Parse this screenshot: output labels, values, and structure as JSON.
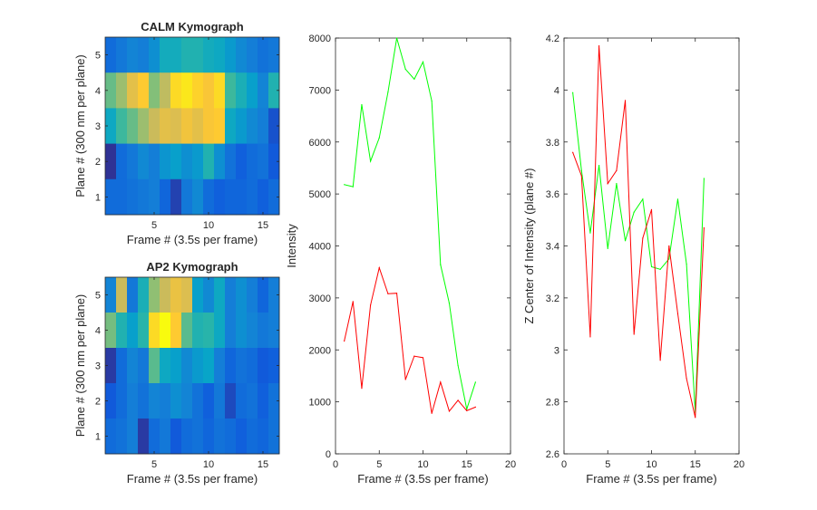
{
  "chart_data": [
    {
      "type": "heatmap",
      "title": "CALM Kymograph",
      "xlabel": "Frame # (3.5s per frame)",
      "ylabel": "Plane # (300 nm per plane)",
      "x_ticks": [
        5,
        10,
        15
      ],
      "y_ticks": [
        1,
        2,
        3,
        4,
        5
      ],
      "x_range": [
        0.5,
        16.5
      ],
      "y_range": [
        0.5,
        5.5
      ],
      "colormap": [
        "#352a87",
        "#0f5cdd",
        "#1481d6",
        "#06a4ca",
        "#2eb7a4",
        "#87bf77",
        "#d1bb59",
        "#fec832",
        "#f9fb0e"
      ],
      "color_range": [
        0,
        1
      ],
      "rows": [
        {
          "plane": 5,
          "values": [
            0.18,
            0.22,
            0.26,
            0.24,
            0.3,
            0.42,
            0.42,
            0.46,
            0.46,
            0.42,
            0.4,
            0.34,
            0.28,
            0.24,
            0.2,
            0.22
          ]
        },
        {
          "plane": 4,
          "values": [
            0.58,
            0.66,
            0.8,
            0.88,
            0.62,
            0.72,
            0.92,
            0.95,
            0.9,
            0.86,
            0.92,
            0.52,
            0.44,
            0.36,
            0.26,
            0.46
          ]
        },
        {
          "plane": 3,
          "values": [
            0.4,
            0.52,
            0.58,
            0.66,
            0.74,
            0.8,
            0.78,
            0.84,
            0.8,
            0.86,
            0.88,
            0.4,
            0.34,
            0.28,
            0.24,
            0.1
          ]
        },
        {
          "plane": 2,
          "values": [
            0.02,
            0.18,
            0.22,
            0.28,
            0.24,
            0.32,
            0.36,
            0.3,
            0.34,
            0.46,
            0.3,
            0.2,
            0.14,
            0.18,
            0.2,
            0.12
          ]
        },
        {
          "plane": 1,
          "values": [
            0.18,
            0.18,
            0.2,
            0.22,
            0.24,
            0.16,
            0.06,
            0.22,
            0.28,
            0.18,
            0.14,
            0.16,
            0.16,
            0.18,
            0.14,
            0.18
          ]
        }
      ]
    },
    {
      "type": "heatmap",
      "title": "AP2 Kymograph",
      "xlabel": "Frame # (3.5s per frame)",
      "ylabel": "Plane # (300 nm per plane)",
      "x_ticks": [
        5,
        10,
        15
      ],
      "y_ticks": [
        1,
        2,
        3,
        4,
        5
      ],
      "x_range": [
        0.5,
        16.5
      ],
      "y_range": [
        0.5,
        5.5
      ],
      "colormap": [
        "#352a87",
        "#0f5cdd",
        "#1481d6",
        "#06a4ca",
        "#2eb7a4",
        "#87bf77",
        "#d1bb59",
        "#fec832",
        "#f9fb0e"
      ],
      "color_range": [
        0,
        1
      ],
      "rows": [
        {
          "plane": 5,
          "values": [
            0.26,
            0.74,
            0.22,
            0.44,
            0.64,
            0.74,
            0.82,
            0.78,
            0.36,
            0.28,
            0.4,
            0.24,
            0.3,
            0.24,
            0.16,
            0.24
          ]
        },
        {
          "plane": 4,
          "values": [
            0.6,
            0.46,
            0.36,
            0.48,
            0.92,
            1.0,
            0.88,
            0.56,
            0.46,
            0.48,
            0.4,
            0.24,
            0.3,
            0.26,
            0.22,
            0.24
          ]
        },
        {
          "plane": 3,
          "values": [
            0.04,
            0.18,
            0.26,
            0.22,
            0.56,
            0.4,
            0.36,
            0.28,
            0.34,
            0.38,
            0.24,
            0.16,
            0.2,
            0.18,
            0.12,
            0.14
          ]
        },
        {
          "plane": 2,
          "values": [
            0.12,
            0.18,
            0.24,
            0.2,
            0.26,
            0.24,
            0.3,
            0.26,
            0.2,
            0.14,
            0.22,
            0.08,
            0.18,
            0.2,
            0.14,
            0.2
          ]
        },
        {
          "plane": 1,
          "values": [
            0.18,
            0.2,
            0.24,
            0.04,
            0.18,
            0.22,
            0.12,
            0.18,
            0.2,
            0.16,
            0.2,
            0.18,
            0.14,
            0.18,
            0.16,
            0.2
          ]
        }
      ]
    },
    {
      "type": "line",
      "title": "",
      "xlabel": "Frame # (3.5s per frame)",
      "ylabel": "Intensity",
      "xlim": [
        0,
        20
      ],
      "ylim": [
        0,
        8000
      ],
      "x_ticks": [
        0,
        5,
        10,
        15,
        20
      ],
      "y_ticks": [
        0,
        1000,
        2000,
        3000,
        4000,
        5000,
        6000,
        7000,
        8000
      ],
      "x": [
        1,
        2,
        3,
        4,
        5,
        6,
        7,
        8,
        9,
        10,
        11,
        12,
        13,
        14,
        15,
        16
      ],
      "series": [
        {
          "color": "#00ff00",
          "values": [
            5180,
            5140,
            6720,
            5630,
            6080,
            6960,
            8000,
            7400,
            7210,
            7540,
            6790,
            3640,
            2900,
            1700,
            860,
            1380
          ]
        },
        {
          "color": "#ff0000",
          "values": [
            2170,
            2930,
            1260,
            2860,
            3580,
            3080,
            3090,
            1430,
            1880,
            1850,
            780,
            1380,
            820,
            1030,
            830,
            900
          ]
        }
      ]
    },
    {
      "type": "line",
      "title": "",
      "xlabel": "Frame # (3.5s per frame)",
      "ylabel": "Z Center of Intensity (plane #)",
      "xlim": [
        0,
        20
      ],
      "ylim": [
        2.6,
        4.2
      ],
      "x_ticks": [
        0,
        5,
        10,
        15,
        20
      ],
      "y_ticks": [
        2.6,
        2.8,
        3,
        3.2,
        3.4,
        3.6,
        3.8,
        4,
        4.2
      ],
      "x": [
        1,
        2,
        3,
        4,
        5,
        6,
        7,
        8,
        9,
        10,
        11,
        12,
        13,
        14,
        15,
        16
      ],
      "series": [
        {
          "color": "#00ff00",
          "values": [
            3.99,
            3.69,
            3.45,
            3.71,
            3.39,
            3.64,
            3.42,
            3.53,
            3.58,
            3.32,
            3.31,
            3.35,
            3.58,
            3.33,
            2.76,
            3.66
          ]
        },
        {
          "color": "#ff0000",
          "values": [
            3.76,
            3.67,
            3.05,
            4.17,
            3.64,
            3.69,
            3.96,
            3.06,
            3.43,
            3.54,
            2.96,
            3.4,
            3.14,
            2.89,
            2.74,
            3.47
          ]
        }
      ]
    }
  ]
}
